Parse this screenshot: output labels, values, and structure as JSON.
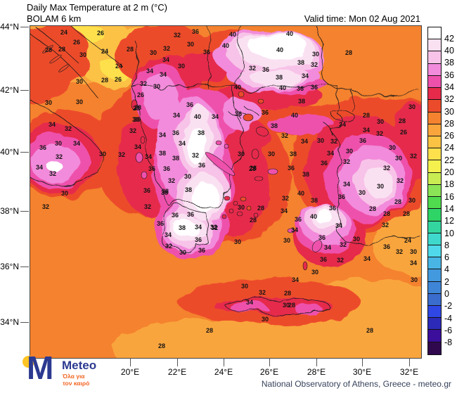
{
  "header": {
    "title_line1": "Daily Max Temperature at 2 m (°C)",
    "title_line2": "BOLAM 6 km",
    "valid_time": "Valid time: Mon 02 Aug 2021"
  },
  "footer": {
    "attribution": "National Observatory of Athens, Greece - meteo.gr"
  },
  "logo": {
    "brand": "Meteo",
    "m_letter": "M",
    "tagline_line1": "Όλα για",
    "tagline_line2": "τον καιρό",
    "brand_color": "#2b3990",
    "tagline_color": "#f26522",
    "dot_color": "#ffc425"
  },
  "chart_data": {
    "type": "heatmap",
    "title": "Daily Max Temperature at 2 m (°C)",
    "model": "BOLAM 6 km",
    "valid_time": "Mon 02 Aug 2021",
    "region": "Greece and surrounding area",
    "x_axis": {
      "ticks": [
        "20°E",
        "22°E",
        "24°E",
        "26°E",
        "28°E",
        "30°E",
        "32°E"
      ]
    },
    "y_axis": {
      "ticks": [
        "44°N",
        "42°N",
        "40°N",
        "38°N",
        "36°N",
        "34°N"
      ]
    },
    "colorbar": {
      "unit": "°C",
      "labels": [
        42,
        40,
        38,
        36,
        34,
        32,
        30,
        28,
        26,
        24,
        22,
        20,
        18,
        16,
        14,
        12,
        10,
        8,
        6,
        4,
        2,
        0,
        -2,
        -4,
        -6,
        -8
      ],
      "colors": [
        "#ffffff",
        "#fae1f2",
        "#f8c3e8",
        "#f28bdb",
        "#ee51ac",
        "#e62a4b",
        "#ec4b2b",
        "#f5822f",
        "#f9a53c",
        "#fbc244",
        "#fde04c",
        "#f4f04e",
        "#c9ec52",
        "#8be456",
        "#50db4e",
        "#2ed465",
        "#33d69e",
        "#3ed9cc",
        "#4fd9ea",
        "#48b5e4",
        "#4399de",
        "#3e85d7",
        "#3a6cce",
        "#2f48e5",
        "#2c2ab9",
        "#3b0e9b",
        "#2f084e"
      ]
    },
    "contour_labels": [
      [
        48,
        9,
        24
      ],
      [
        100,
        10,
        26
      ],
      [
        66,
        23,
        26
      ],
      [
        26,
        34,
        28
      ],
      [
        45,
        33,
        28
      ],
      [
        75,
        41,
        30
      ],
      [
        106,
        36,
        24
      ],
      [
        142,
        33,
        28
      ],
      [
        175,
        38,
        30
      ],
      [
        194,
        32,
        32
      ],
      [
        209,
        13,
        32
      ],
      [
        235,
        8,
        36
      ],
      [
        228,
        26,
        30
      ],
      [
        251,
        37,
        36
      ],
      [
        278,
        28,
        40
      ],
      [
        193,
        48,
        34
      ],
      [
        126,
        57,
        24
      ],
      [
        170,
        64,
        34
      ],
      [
        189,
        69,
        34
      ],
      [
        215,
        57,
        30
      ],
      [
        106,
        77,
        28
      ],
      [
        125,
        76,
        26
      ],
      [
        70,
        79,
        30
      ],
      [
        161,
        82,
        32
      ],
      [
        180,
        86,
        30
      ],
      [
        157,
        98,
        26
      ],
      [
        153,
        116,
        28
      ],
      [
        70,
        108,
        30
      ],
      [
        26,
        109,
        30
      ],
      [
        227,
        112,
        36
      ],
      [
        208,
        127,
        34
      ],
      [
        152,
        133,
        30
      ],
      [
        288,
        12,
        40
      ],
      [
        369,
        11,
        40
      ],
      [
        355,
        34,
        40
      ],
      [
        406,
        40,
        30
      ],
      [
        453,
        38,
        28
      ],
      [
        385,
        52,
        38
      ],
      [
        404,
        55,
        32
      ],
      [
        316,
        60,
        32
      ],
      [
        335,
        62,
        36
      ],
      [
        391,
        71,
        34
      ],
      [
        354,
        73,
        38
      ],
      [
        295,
        87,
        40
      ],
      [
        359,
        88,
        40
      ],
      [
        384,
        89,
        36
      ],
      [
        404,
        87,
        36
      ],
      [
        386,
        107,
        38
      ],
      [
        296,
        125,
        36
      ],
      [
        334,
        123,
        36
      ],
      [
        376,
        127,
        40
      ],
      [
        478,
        127,
        28
      ],
      [
        498,
        136,
        30
      ],
      [
        347,
        142,
        38
      ],
      [
        362,
        156,
        32
      ],
      [
        390,
        164,
        34
      ],
      [
        478,
        148,
        34
      ],
      [
        497,
        153,
        32
      ],
      [
        531,
        151,
        26
      ],
      [
        529,
        135,
        28
      ],
      [
        543,
        115,
        30
      ],
      [
        444,
        140,
        34
      ],
      [
        473,
        163,
        36
      ],
      [
        413,
        163,
        30
      ],
      [
        432,
        164,
        32
      ],
      [
        454,
        178,
        30
      ],
      [
        427,
        181,
        34
      ],
      [
        515,
        173,
        30
      ],
      [
        545,
        185,
        32
      ],
      [
        524,
        188,
        30
      ],
      [
        374,
        182,
        38
      ],
      [
        343,
        182,
        30
      ],
      [
        317,
        202,
        28
      ],
      [
        392,
        211,
        38
      ],
      [
        418,
        195,
        36
      ],
      [
        450,
        193,
        32
      ],
      [
        371,
        202,
        36
      ],
      [
        507,
        202,
        32
      ],
      [
        526,
        220,
        32
      ],
      [
        498,
        228,
        30
      ],
      [
        450,
        225,
        34
      ],
      [
        151,
        117,
        28
      ],
      [
        150,
        133,
        30
      ],
      [
        146,
        149,
        32
      ],
      [
        188,
        155,
        34
      ],
      [
        207,
        152,
        36
      ],
      [
        238,
        129,
        40
      ],
      [
        263,
        129,
        34
      ],
      [
        243,
        152,
        38
      ],
      [
        216,
        167,
        34
      ],
      [
        168,
        186,
        34
      ],
      [
        188,
        181,
        38
      ],
      [
        207,
        188,
        38
      ],
      [
        235,
        184,
        32
      ],
      [
        173,
        203,
        36
      ],
      [
        194,
        203,
        36
      ],
      [
        244,
        198,
        36
      ],
      [
        224,
        214,
        30
      ],
      [
        201,
        220,
        32
      ],
      [
        300,
        182,
        30
      ],
      [
        316,
        203,
        28
      ],
      [
        225,
        233,
        38
      ],
      [
        166,
        234,
        36
      ],
      [
        192,
        235,
        38
      ],
      [
        167,
        257,
        32
      ],
      [
        300,
        258,
        30
      ],
      [
        328,
        259,
        28
      ],
      [
        206,
        269,
        36
      ],
      [
        228,
        268,
        36
      ],
      [
        216,
        287,
        38
      ],
      [
        262,
        287,
        32
      ],
      [
        196,
        297,
        34
      ],
      [
        317,
        276,
        28
      ],
      [
        295,
        307,
        30
      ],
      [
        239,
        304,
        36
      ],
      [
        31,
        140,
        34
      ],
      [
        54,
        146,
        32
      ],
      [
        40,
        167,
        30
      ],
      [
        18,
        173,
        36
      ],
      [
        66,
        167,
        34
      ],
      [
        41,
        186,
        32
      ],
      [
        13,
        201,
        34
      ],
      [
        32,
        210,
        32
      ],
      [
        103,
        182,
        30
      ],
      [
        130,
        183,
        32
      ],
      [
        153,
        172,
        34
      ],
      [
        49,
        238,
        30
      ],
      [
        22,
        257,
        32
      ],
      [
        385,
        238,
        40
      ],
      [
        404,
        248,
        38
      ],
      [
        430,
        259,
        36
      ],
      [
        443,
        243,
        36
      ],
      [
        472,
        237,
        30
      ],
      [
        543,
        248,
        30
      ],
      [
        523,
        250,
        28
      ],
      [
        487,
        260,
        28
      ],
      [
        507,
        267,
        28
      ],
      [
        535,
        267,
        28
      ],
      [
        361,
        263,
        34
      ],
      [
        363,
        245,
        32
      ],
      [
        403,
        271,
        40
      ],
      [
        381,
        275,
        36
      ],
      [
        439,
        284,
        34
      ],
      [
        505,
        283,
        32
      ],
      [
        537,
        305,
        24
      ],
      [
        376,
        290,
        34
      ],
      [
        365,
        305,
        30
      ],
      [
        415,
        301,
        36
      ],
      [
        445,
        311,
        32
      ],
      [
        507,
        314,
        36
      ],
      [
        525,
        321,
        32
      ],
      [
        545,
        321,
        30
      ],
      [
        479,
        331,
        34
      ],
      [
        423,
        315,
        34
      ],
      [
        441,
        333,
        32
      ],
      [
        464,
        303,
        30
      ],
      [
        417,
        332,
        36
      ],
      [
        405,
        350,
        30
      ],
      [
        545,
        337,
        34
      ],
      [
        546,
        361,
        30
      ],
      [
        377,
        361,
        34
      ],
      [
        364,
        397,
        30
      ],
      [
        305,
        370,
        30
      ],
      [
        330,
        379,
        32
      ],
      [
        312,
        393,
        34
      ],
      [
        366,
        380,
        28
      ],
      [
        372,
        397,
        28
      ],
      [
        334,
        417,
        30
      ],
      [
        483,
        433,
        28
      ],
      [
        191,
        237,
        38
      ],
      [
        185,
        281,
        36
      ],
      [
        239,
        286,
        34
      ],
      [
        261,
        286,
        32
      ],
      [
        197,
        313,
        32
      ],
      [
        244,
        319,
        36
      ],
      [
        217,
        322,
        30
      ],
      [
        255,
        433,
        28
      ],
      [
        187,
        455,
        28
      ]
    ]
  }
}
